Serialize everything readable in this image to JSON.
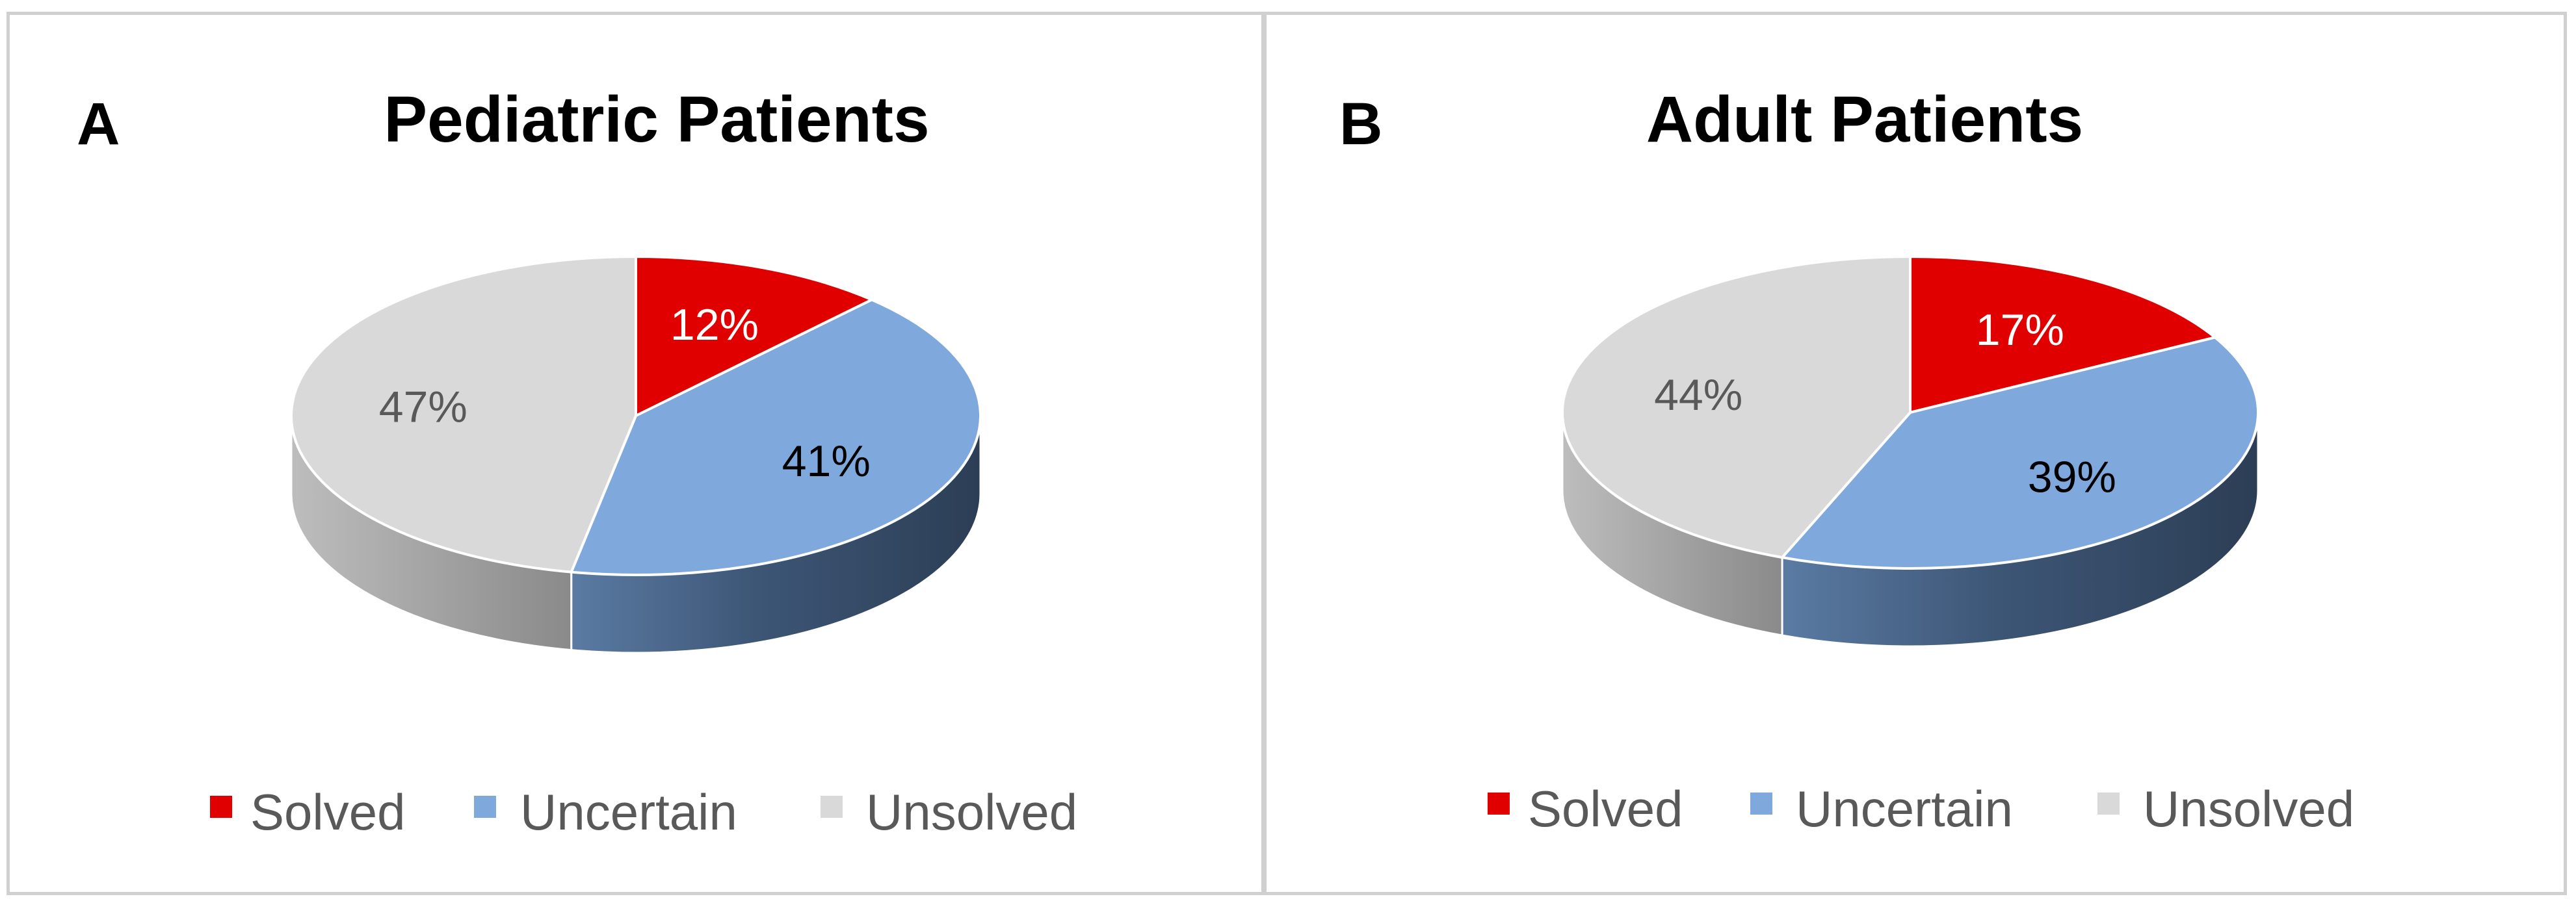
{
  "chart_data": [
    {
      "type": "pie",
      "panel_letter": "A",
      "title": "Pediatric Patients",
      "categories": [
        "Solved",
        "Uncertain",
        "Unsolved"
      ],
      "values": [
        12,
        41,
        47
      ],
      "labels": [
        "12%",
        "41%",
        "47%"
      ],
      "colors": [
        "#e00000",
        "#7fa8dc",
        "#d9d9d9"
      ],
      "legend_position": "bottom"
    },
    {
      "type": "pie",
      "panel_letter": "B",
      "title": "Adult Patients",
      "categories": [
        "Solved",
        "Uncertain",
        "Unsolved"
      ],
      "values": [
        17,
        39,
        44
      ],
      "labels": [
        "17%",
        "39%",
        "44%"
      ],
      "colors": [
        "#e00000",
        "#7fa8dc",
        "#d9d9d9"
      ],
      "legend_position": "bottom"
    }
  ]
}
